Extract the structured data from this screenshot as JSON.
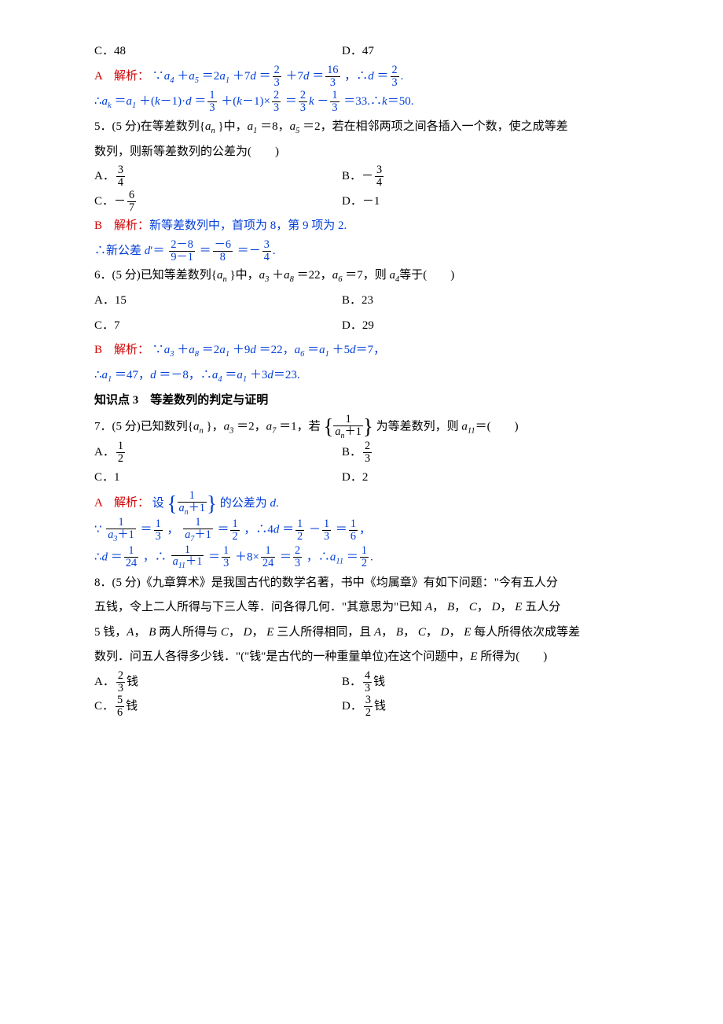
{
  "q4": {
    "optC": "C．48",
    "optD": "D．47",
    "sol_label": "A　解析：",
    "sol_l1_a": "∵",
    "sol_l1_b": "＋",
    "sol_l1_c": "＝2",
    "sol_l1_d": "＋7",
    "sol_l1_e": "＝",
    "sol_l1_f": "＋7",
    "sol_l1_g": "＝",
    "sol_l1_h": "，∴",
    "sol_l1_i": "＝",
    "sol_l1_j": ".",
    "sol_l2_a": "∴",
    "sol_l2_b": "＝",
    "sol_l2_c": "＋(",
    "sol_l2_d": "－1)·",
    "sol_l2_e": "＝",
    "sol_l2_f": "＋(",
    "sol_l2_g": "－1)×",
    "sol_l2_h": "＝",
    "sol_l2_i": "－",
    "sol_l2_j": "＝33.∴",
    "sol_l2_k": "＝50.",
    "a4": "a",
    "a5": "a",
    "a1": "a",
    "d": "d",
    "ak": "a",
    "k": "k",
    "f23n": "2",
    "f23d": "3",
    "f163n": "16",
    "f163d": "3",
    "f13n": "1",
    "f13d": "3"
  },
  "q5": {
    "stem_a": "5．(5 分)在等差数列{",
    "stem_b": "}中，",
    "stem_c": "＝8，",
    "stem_d": "＝2，若在相邻两项之间各插入一个数，使之成等差",
    "stem2": "数列，则新等差数列的公差为(　　)",
    "optA_a": "A．",
    "optB_a": "B．－",
    "optC_a": "C．－",
    "optD": "D．－1",
    "an": "a",
    "a1": "a",
    "a5": "a",
    "f34n": "3",
    "f34d": "4",
    "f67n": "6",
    "f67d": "7",
    "sol_label": "B　解析：",
    "sol_l1": "新等差数列中，首项为 8，第 9 项为 2.",
    "sol_l2_a": "∴新公差 ",
    "sol_l2_b": "′＝",
    "sol_l2_c": "＝",
    "sol_l2_d": "＝－",
    "sol_l2_e": ".",
    "d": "d",
    "fAn": "2－8",
    "fAd": "9－1",
    "fBn": "－6",
    "fBd": "8"
  },
  "q6": {
    "stem_a": "6．(5 分)已知等差数列{",
    "stem_b": "}中，",
    "stem_c": "＋",
    "stem_d": "＝22，",
    "stem_e": "＝7，则 ",
    "stem_f": "等于(　　)",
    "optA": "A．15",
    "optB": "B．23",
    "optC": "C．7",
    "optD": "D．29",
    "an": "a",
    "a3": "a",
    "a8": "a",
    "a6": "a",
    "a4": "a",
    "a1": "a",
    "d": "d",
    "sol_label": "B　解析：",
    "sol_l1_a": "∵",
    "sol_l1_b": "＋",
    "sol_l1_c": "＝2",
    "sol_l1_d": "＋9",
    "sol_l1_e": "＝22，",
    "sol_l1_f": "＝",
    "sol_l1_g": "＋5",
    "sol_l1_h": "＝7，",
    "sol_l2_a": "∴",
    "sol_l2_b": "＝47，",
    "sol_l2_c": "＝－8，∴",
    "sol_l2_d": "＝",
    "sol_l2_e": "＋3",
    "sol_l2_f": "＝23."
  },
  "kp3": "知识点 3　等差数列的判定与证明",
  "q7": {
    "stem_a": "7．(5 分)已知数列{",
    "stem_b": "}，",
    "stem_c": "＝2，",
    "stem_d": "＝1，若",
    "stem_e": "为等差数列，则 ",
    "stem_f": "＝(　　)",
    "optA_a": "A．",
    "optB_a": "B．",
    "optC": "C．1",
    "optD": "D．2",
    "f12n": "1",
    "f12d": "2",
    "f23n": "2",
    "f23d": "3",
    "an": "a",
    "a3": "a",
    "a7": "a",
    "a11": "a",
    "d": "d",
    "bb_num": "1",
    "bb_den_a": "＋1",
    "sol_label": "A　解析：",
    "sol_l1_a": "设",
    "sol_l1_b": "的公差为 ",
    "sol_l1_c": ".",
    "sol_l2_a": "∵",
    "sol_l2_b": "＝",
    "sol_l2_c": "，",
    "sol_l2_d": "＝",
    "sol_l2_e": "，∴4",
    "sol_l2_f": "＝",
    "sol_l2_g": "－",
    "sol_l2_h": "＝",
    "sol_l2_i": "，",
    "f13n": "1",
    "f13d": "3",
    "f16n": "1",
    "f16d": "6",
    "sol_l3_a": "∴",
    "sol_l3_b": "＝",
    "sol_l3_c": "，∴",
    "sol_l3_d": "＝",
    "sol_l3_e": "＋8×",
    "sol_l3_f": "＝",
    "sol_l3_g": "，∴",
    "sol_l3_h": "＝",
    "sol_l3_i": ".",
    "f124n": "1",
    "f124d": "24",
    "a3p1": "＋1",
    "a7p1": "＋1",
    "a11p1": "＋1"
  },
  "q8": {
    "l1": "8．(5 分)《九章算术》是我国古代的数学名著，书中《均属章》有如下问题：\"今有五人分",
    "l2_a": "五钱，令上二人所得与下三人等．问各得几何．\"其意思为\"已知 ",
    "l2_b": "，",
    "l2_c": "，",
    "l2_d": "，",
    "l2_e": "，",
    "l2_f": " 五人分",
    "l3_a": "5 钱，",
    "l3_b": "，",
    "l3_c": " 两人所得与 ",
    "l3_d": "，",
    "l3_e": "，",
    "l3_f": " 三人所得相同，且 ",
    "l3_g": "，",
    "l3_h": "，",
    "l3_i": "，",
    "l3_j": "，",
    "l3_k": " 每人所得依次成等差",
    "l4_a": "数列．问五人各得多少钱．\"(\"钱\"是古代的一种重量单位)在这个问题中，",
    "l4_b": " 所得为(　　)",
    "A": "A",
    "B": "B",
    "C": "C",
    "D": "D",
    "E": "E",
    "optA_a": "A．",
    "optA_b": "钱",
    "optB_a": "B．",
    "optB_b": "钱",
    "optC_a": "C．",
    "optC_b": "钱",
    "optD_a": "D．",
    "optD_b": "钱",
    "f23n": "2",
    "f23d": "3",
    "f43n": "4",
    "f43d": "3",
    "f56n": "5",
    "f56d": "6",
    "f32n": "3",
    "f32d": "2"
  }
}
